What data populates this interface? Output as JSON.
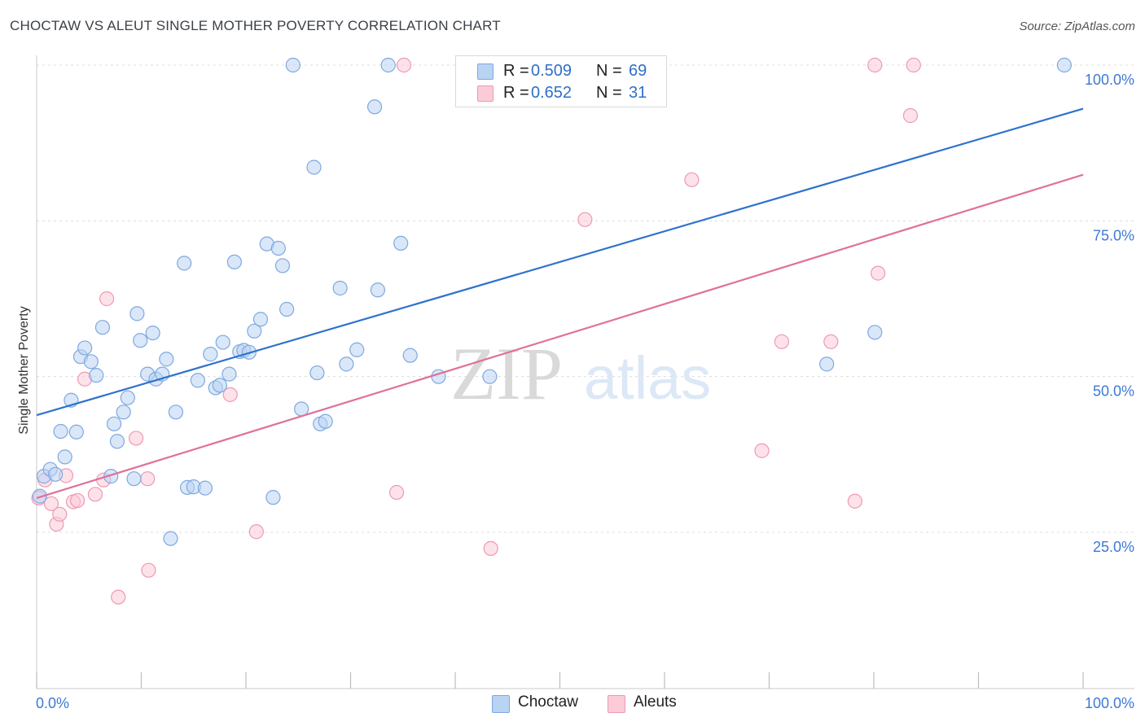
{
  "header": {
    "title": "CHOCTAW VS ALEUT SINGLE MOTHER POVERTY CORRELATION CHART",
    "source": "Source: ZipAtlas.com"
  },
  "legend": {
    "rows": [
      {
        "r_label": "R =",
        "r_value": "0.509",
        "n_label": "N =",
        "n_value": "69"
      },
      {
        "r_label": "R =",
        "r_value": "0.652",
        "n_label": "N =",
        "n_value": "31"
      }
    ]
  },
  "bottom_legend": [
    "Choctaw",
    "Aleuts"
  ],
  "watermark": {
    "zip": "ZIP",
    "atlas": "atlas"
  },
  "colors": {
    "choctaw_fill": "#b9d3f3",
    "choctaw_stroke": "#7ea9e0",
    "choctaw_line": "#2f72cc",
    "aleut_fill": "#fbcbd8",
    "aleut_stroke": "#ec9ab3",
    "aleut_line": "#e0709a",
    "tick_label": "#3d78d6",
    "grid": "#dcdcdc"
  },
  "chart_data": {
    "type": "scatter",
    "title": "CHOCTAW VS ALEUT SINGLE MOTHER POVERTY CORRELATION CHART",
    "xlabel": "",
    "ylabel": "Single Mother Poverty",
    "xlim": [
      0,
      100
    ],
    "ylim": [
      3,
      103
    ],
    "x_tick_labels": [
      "0.0%",
      "100.0%"
    ],
    "y_ticks": [
      25,
      50,
      75,
      100
    ],
    "y_tick_labels": [
      "25.0%",
      "50.0%",
      "75.0%",
      "100.0%"
    ],
    "grid": "horizontal dashed",
    "legend_position": "top-center",
    "series": [
      {
        "name": "Choctaw",
        "r": 0.509,
        "n": 69,
        "trend": {
          "x": [
            0,
            100
          ],
          "y": [
            43.8,
            93.0
          ]
        },
        "points": [
          [
            0.3,
            30.8
          ],
          [
            0.7,
            34.0
          ],
          [
            1.3,
            35.1
          ],
          [
            1.8,
            34.3
          ],
          [
            2.3,
            41.2
          ],
          [
            2.7,
            37.1
          ],
          [
            3.3,
            46.2
          ],
          [
            3.8,
            41.1
          ],
          [
            4.2,
            53.2
          ],
          [
            4.6,
            54.6
          ],
          [
            5.2,
            52.4
          ],
          [
            5.7,
            50.2
          ],
          [
            6.3,
            57.9
          ],
          [
            7.1,
            34.0
          ],
          [
            7.4,
            42.4
          ],
          [
            7.7,
            39.6
          ],
          [
            8.3,
            44.3
          ],
          [
            8.7,
            46.6
          ],
          [
            9.3,
            33.6
          ],
          [
            9.6,
            60.1
          ],
          [
            9.9,
            55.8
          ],
          [
            10.6,
            50.4
          ],
          [
            11.1,
            57.0
          ],
          [
            11.4,
            49.6
          ],
          [
            12.0,
            50.4
          ],
          [
            12.4,
            52.8
          ],
          [
            12.8,
            24.0
          ],
          [
            13.3,
            44.3
          ],
          [
            14.1,
            68.2
          ],
          [
            14.4,
            32.2
          ],
          [
            15.0,
            32.3
          ],
          [
            15.4,
            49.4
          ],
          [
            16.1,
            32.1
          ],
          [
            16.6,
            53.6
          ],
          [
            17.1,
            48.2
          ],
          [
            17.5,
            48.6
          ],
          [
            17.8,
            55.5
          ],
          [
            18.4,
            50.4
          ],
          [
            18.9,
            68.4
          ],
          [
            19.4,
            54.0
          ],
          [
            19.8,
            54.2
          ],
          [
            20.3,
            53.9
          ],
          [
            20.8,
            57.3
          ],
          [
            21.4,
            59.2
          ],
          [
            22.0,
            71.3
          ],
          [
            22.6,
            30.6
          ],
          [
            23.1,
            70.6
          ],
          [
            23.5,
            67.8
          ],
          [
            23.9,
            60.8
          ],
          [
            24.5,
            100.0
          ],
          [
            25.3,
            44.8
          ],
          [
            26.5,
            83.6
          ],
          [
            26.8,
            50.6
          ],
          [
            27.1,
            42.4
          ],
          [
            27.6,
            42.8
          ],
          [
            29.0,
            64.2
          ],
          [
            29.6,
            52.0
          ],
          [
            30.6,
            54.3
          ],
          [
            32.3,
            93.3
          ],
          [
            32.6,
            63.9
          ],
          [
            33.6,
            100.0
          ],
          [
            34.8,
            71.4
          ],
          [
            35.7,
            53.4
          ],
          [
            38.4,
            50.0
          ],
          [
            43.3,
            50.0
          ],
          [
            45.4,
            100.0
          ],
          [
            75.5,
            52.0
          ],
          [
            80.1,
            57.1
          ],
          [
            98.2,
            100.0
          ]
        ]
      },
      {
        "name": "Aleuts",
        "r": 0.652,
        "n": 31,
        "trend": {
          "x": [
            0,
            100
          ],
          "y": [
            30.5,
            82.4
          ]
        },
        "points": [
          [
            0.2,
            30.5
          ],
          [
            0.8,
            33.4
          ],
          [
            1.4,
            29.6
          ],
          [
            1.9,
            26.3
          ],
          [
            2.2,
            27.9
          ],
          [
            2.8,
            34.1
          ],
          [
            3.5,
            29.9
          ],
          [
            3.9,
            30.1
          ],
          [
            4.6,
            49.6
          ],
          [
            5.6,
            31.1
          ],
          [
            6.4,
            33.4
          ],
          [
            6.7,
            62.5
          ],
          [
            7.8,
            14.6
          ],
          [
            9.5,
            40.1
          ],
          [
            10.6,
            33.6
          ],
          [
            10.7,
            18.9
          ],
          [
            18.5,
            47.1
          ],
          [
            21.0,
            25.1
          ],
          [
            34.4,
            31.4
          ],
          [
            35.1,
            100.0
          ],
          [
            43.4,
            22.4
          ],
          [
            52.4,
            75.2
          ],
          [
            62.6,
            81.6
          ],
          [
            69.3,
            38.1
          ],
          [
            78.2,
            30.0
          ],
          [
            80.1,
            100.0
          ],
          [
            80.4,
            66.6
          ],
          [
            83.5,
            91.9
          ],
          [
            83.8,
            100.0
          ],
          [
            71.2,
            55.6
          ],
          [
            75.9,
            55.6
          ]
        ]
      }
    ]
  }
}
